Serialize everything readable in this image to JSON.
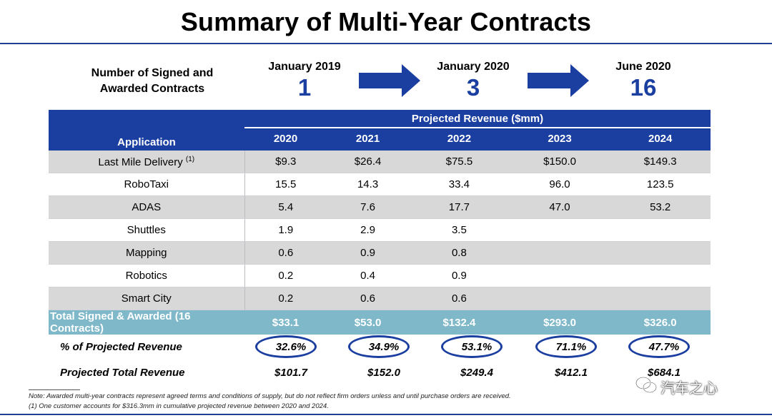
{
  "title": "Summary of Multi-Year Contracts",
  "signed_label": "Number of Signed and Awarded Contracts",
  "milestones": [
    {
      "date": "January 2019",
      "count": "1"
    },
    {
      "date": "January 2020",
      "count": "3"
    },
    {
      "date": "June 2020",
      "count": "16"
    }
  ],
  "table": {
    "application_header": "Application",
    "projected_header": "Projected Revenue ($mm)",
    "years": [
      "2020",
      "2021",
      "2022",
      "2023",
      "2024"
    ],
    "rows": [
      {
        "app": "Last Mile Delivery",
        "note": "(1)",
        "values": [
          "$9.3",
          "$26.4",
          "$75.5",
          "$150.0",
          "$149.3"
        ]
      },
      {
        "app": "RoboTaxi",
        "values": [
          "15.5",
          "14.3",
          "33.4",
          "96.0",
          "123.5"
        ]
      },
      {
        "app": "ADAS",
        "values": [
          "5.4",
          "7.6",
          "17.7",
          "47.0",
          "53.2"
        ]
      },
      {
        "app": "Shuttles",
        "values": [
          "1.9",
          "2.9",
          "3.5",
          "",
          ""
        ]
      },
      {
        "app": "Mapping",
        "values": [
          "0.6",
          "0.9",
          "0.8",
          "",
          ""
        ]
      },
      {
        "app": "Robotics",
        "values": [
          "0.2",
          "0.4",
          "0.9",
          "",
          ""
        ]
      },
      {
        "app": "Smart City",
        "values": [
          "0.2",
          "0.6",
          "0.6",
          "",
          ""
        ]
      }
    ],
    "total": {
      "label": "Total Signed & Awarded (16 Contracts)",
      "values": [
        "$33.1",
        "$53.0",
        "$132.4",
        "$293.0",
        "$326.0"
      ]
    }
  },
  "pct_projected": {
    "label": "% of Projected Revenue",
    "values": [
      "32.6%",
      "34.9%",
      "53.1%",
      "71.1%",
      "47.7%"
    ]
  },
  "projected_total": {
    "label": "Projected Total Revenue",
    "values": [
      "$101.7",
      "$152.0",
      "$249.4",
      "$412.1",
      "$684.1"
    ]
  },
  "footnotes": [
    "Note: Awarded multi-year contracts represent agreed terms and conditions of supply, but do not reflect firm orders unless and until purchase orders are received.",
    "(1)   One customer accounts for $316.3mm in cumulative projected revenue between 2020 and 2024."
  ],
  "watermark": "汽车之心",
  "colors": {
    "brand_blue": "#1b3fa0",
    "total_row": "#7fb8c8",
    "grey_row": "#d8d8d8"
  }
}
